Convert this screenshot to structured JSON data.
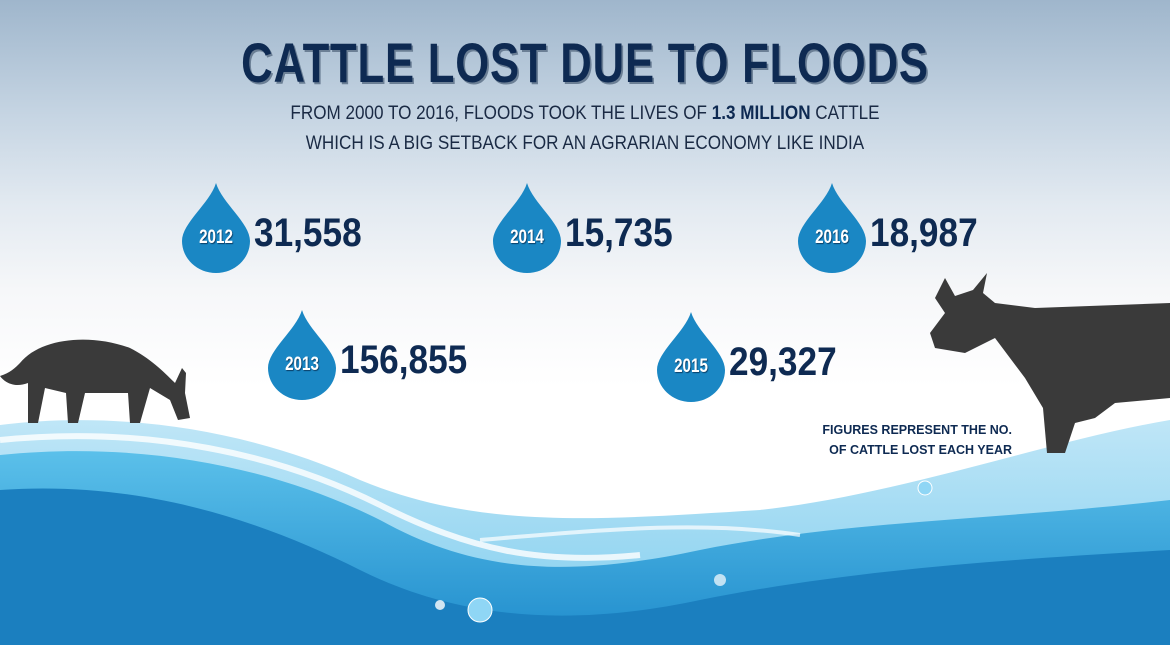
{
  "title": "CATTLE LOST DUE TO FLOODS",
  "subtitle": {
    "line1_pre": "FROM 2000 TO 2016, FLOODS TOOK THE LIVES OF ",
    "line1_bold": "1.3 MILLION",
    "line1_post": " CATTLE",
    "line2": "WHICH IS A BIG SETBACK FOR AN AGRARIAN ECONOMY LIKE INDIA"
  },
  "stats": [
    {
      "year": "2012",
      "value": "31,558"
    },
    {
      "year": "2013",
      "value": "156,855"
    },
    {
      "year": "2014",
      "value": "15,735"
    },
    {
      "year": "2015",
      "value": "29,327"
    },
    {
      "year": "2016",
      "value": "18,987"
    }
  ],
  "note": {
    "line1": "FIGURES REPRESENT THE NO.",
    "line2": "OF CATTLE LOST EACH YEAR"
  },
  "colors": {
    "title": "#0e2a52",
    "drop": "#1a87c4",
    "water": "#2a9fd8",
    "silhouette": "#3a3a3a"
  },
  "icons": [
    "water-drop-icon",
    "goat-silhouette",
    "cow-silhouette",
    "wave-illustration"
  ]
}
